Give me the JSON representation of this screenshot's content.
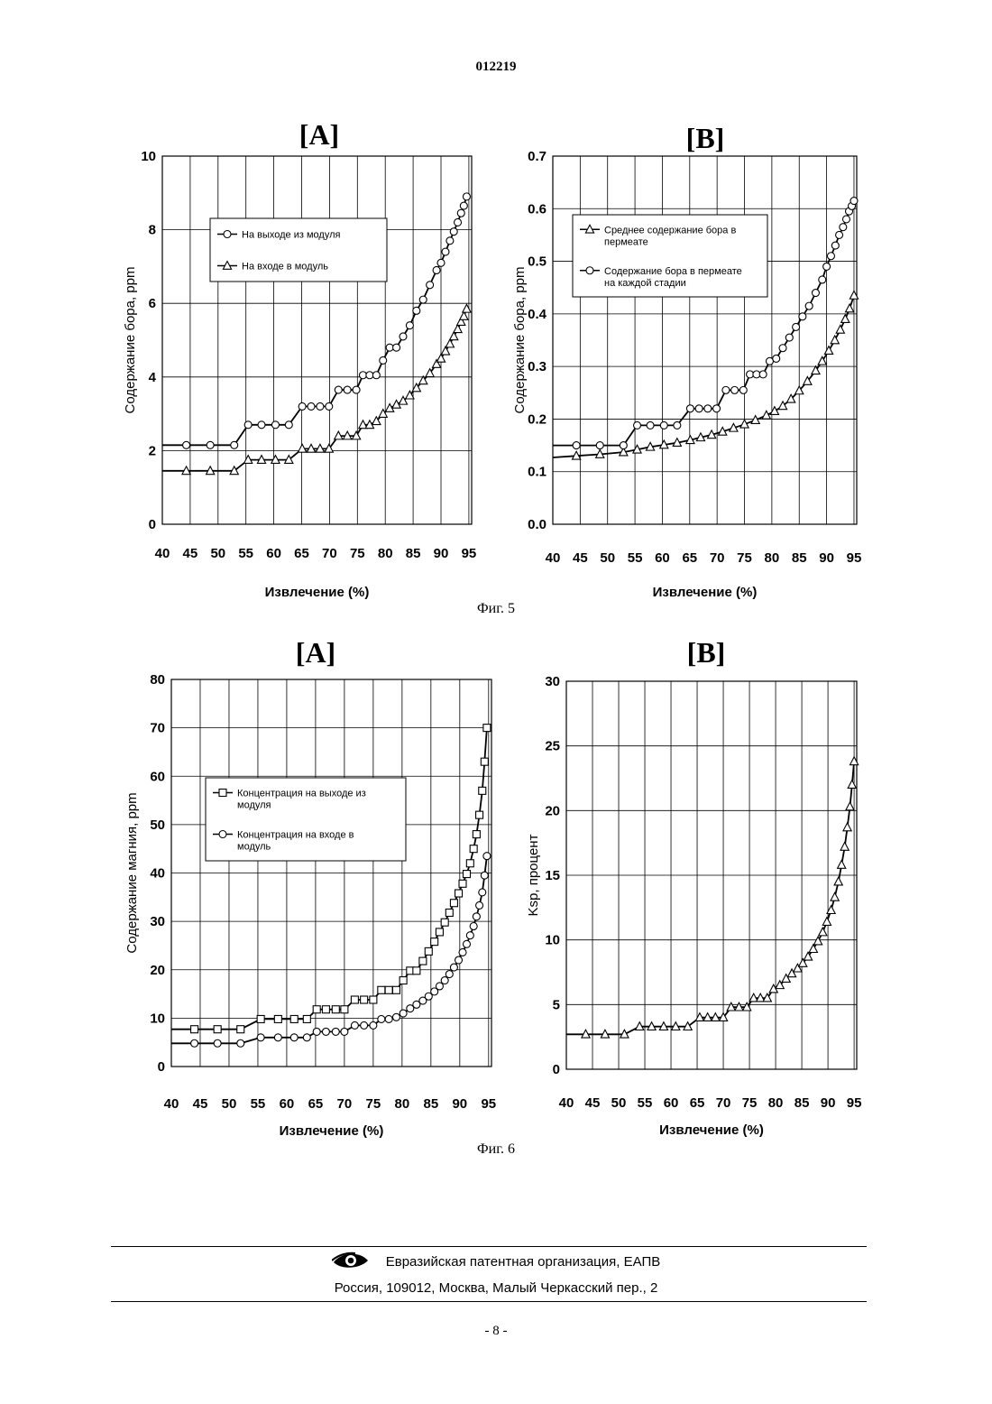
{
  "document": {
    "number": "012219",
    "figure5_caption": "Фиг. 5",
    "figure6_caption": "Фиг. 6",
    "footer_org": "Евразийская патентная организация, ЕАПВ",
    "footer_address": "Россия, 109012, Москва, Малый Черкасский пер., 2",
    "page_number": "- 8 -"
  },
  "charts": [
    {
      "id": "fig5a",
      "panel": "[A]",
      "ylabel": "Содержание бора, ppm",
      "xlabel": "Извлечение (%)",
      "xticks": [
        40,
        45,
        50,
        55,
        60,
        65,
        70,
        75,
        80,
        85,
        90,
        95
      ],
      "yticks": [
        "0",
        "2",
        "4",
        "6",
        "8",
        "10"
      ],
      "ylim": [
        0,
        10
      ],
      "legend": [
        {
          "label": [
            "На выходе из модуля"
          ],
          "marker": "circle"
        },
        {
          "label": [
            "На входе в модуль"
          ],
          "marker": "triangle"
        }
      ]
    },
    {
      "id": "fig5b",
      "panel": "[B]",
      "ylabel": "Содержание бора, ppm",
      "xlabel": "Извлечение (%)",
      "xticks": [
        40,
        45,
        50,
        55,
        60,
        65,
        70,
        75,
        80,
        85,
        90,
        95
      ],
      "yticks": [
        "0.0",
        "0.1",
        "0.2",
        "0.3",
        "0.4",
        "0.5",
        "0.6",
        "0.7"
      ],
      "ylim": [
        0,
        0.7
      ],
      "legend": [
        {
          "label": [
            "Среднее содержание бора в",
            "пермеате"
          ],
          "marker": "triangle"
        },
        {
          "label": [
            "Содержание бора в пермеате",
            "на каждой стадии"
          ],
          "marker": "circle"
        }
      ]
    },
    {
      "id": "fig6a",
      "panel": "[A]",
      "ylabel": "Содержание магния, ppm",
      "xlabel": "Извлечение (%)",
      "xticks": [
        40,
        45,
        50,
        55,
        60,
        65,
        70,
        75,
        80,
        85,
        90,
        95
      ],
      "yticks": [
        "0",
        "10",
        "20",
        "30",
        "40",
        "50",
        "60",
        "70",
        "80"
      ],
      "ylim": [
        0,
        80
      ],
      "legend": [
        {
          "label": [
            "Концентрация на выходе из",
            "модуля"
          ],
          "marker": "square"
        },
        {
          "label": [
            "Концентрация на входе в",
            "модуль"
          ],
          "marker": "circle"
        }
      ]
    },
    {
      "id": "fig6b",
      "panel": "[B]",
      "ylabel": "Ksp, процент",
      "xlabel": "Извлечение (%)",
      "xticks": [
        40,
        45,
        50,
        55,
        60,
        65,
        70,
        75,
        80,
        85,
        90,
        95
      ],
      "yticks": [
        "0",
        "5",
        "10",
        "15",
        "20",
        "25",
        "30"
      ],
      "ylim": [
        0,
        30
      ],
      "legend": []
    }
  ],
  "chart_data": [
    {
      "type": "line",
      "xlim": [
        40,
        95.5
      ],
      "ylim": [
        0,
        10
      ],
      "grid": true,
      "legend_position": "upper-center",
      "series": [
        {
          "name": "На выходе из модуля",
          "marker": "circle",
          "x": [
            40,
            44.3,
            48.6,
            52.9,
            55.4,
            57.8,
            60.3,
            62.7,
            65.1,
            66.7,
            68.3,
            69.9,
            71.6,
            73.2,
            74.8,
            76,
            77.2,
            78.4,
            79.6,
            80.8,
            82,
            83.2,
            84.4,
            85.6,
            86.8,
            88,
            89.2,
            90,
            90.8,
            91.6,
            92.3,
            93,
            93.6,
            94.1,
            94.6
          ],
          "y": [
            2.15,
            2.15,
            2.15,
            2.15,
            2.7,
            2.7,
            2.7,
            2.7,
            3.2,
            3.2,
            3.2,
            3.2,
            3.65,
            3.65,
            3.65,
            4.05,
            4.05,
            4.05,
            4.45,
            4.8,
            4.8,
            5.1,
            5.4,
            5.8,
            6.1,
            6.5,
            6.9,
            7.1,
            7.4,
            7.7,
            7.95,
            8.2,
            8.45,
            8.65,
            8.9
          ]
        },
        {
          "name": "На входе в модуль",
          "marker": "triangle",
          "x": [
            40,
            44.3,
            48.6,
            52.9,
            55.4,
            57.8,
            60.3,
            62.7,
            65.1,
            66.7,
            68.3,
            69.9,
            71.6,
            73.2,
            74.8,
            76,
            77.2,
            78.4,
            79.6,
            80.8,
            82,
            83.2,
            84.4,
            85.6,
            86.8,
            88,
            89.2,
            90,
            90.8,
            91.6,
            92.3,
            93,
            93.6,
            94.1,
            94.6
          ],
          "y": [
            1.45,
            1.45,
            1.45,
            1.45,
            1.75,
            1.75,
            1.75,
            1.75,
            2.05,
            2.05,
            2.05,
            2.05,
            2.4,
            2.4,
            2.4,
            2.7,
            2.7,
            2.8,
            3.0,
            3.15,
            3.25,
            3.35,
            3.5,
            3.7,
            3.9,
            4.1,
            4.35,
            4.5,
            4.7,
            4.9,
            5.1,
            5.3,
            5.5,
            5.65,
            5.85
          ]
        }
      ]
    },
    {
      "type": "line",
      "xlim": [
        40,
        95.5
      ],
      "ylim": [
        0,
        0.7
      ],
      "grid": true,
      "legend_position": "upper-center",
      "series": [
        {
          "name": "Среднее содержание бора в пермеате",
          "marker": "triangle",
          "x": [
            40,
            44.3,
            48.6,
            52.9,
            55.4,
            57.8,
            60.3,
            62.7,
            65.1,
            67,
            69,
            71,
            73,
            75,
            77,
            79,
            80.5,
            82,
            83.5,
            85,
            86.5,
            88,
            89.2,
            90.4,
            91.5,
            92.5,
            93.4,
            94.2,
            95
          ],
          "y": [
            0.127,
            0.13,
            0.133,
            0.137,
            0.142,
            0.147,
            0.151,
            0.155,
            0.16,
            0.165,
            0.17,
            0.176,
            0.183,
            0.19,
            0.198,
            0.207,
            0.215,
            0.225,
            0.238,
            0.254,
            0.272,
            0.292,
            0.31,
            0.33,
            0.35,
            0.37,
            0.39,
            0.41,
            0.435
          ]
        },
        {
          "name": "Содержание бора в пермеате на каждой стадии",
          "marker": "circle",
          "x": [
            40,
            44.3,
            48.6,
            52.9,
            55.4,
            57.8,
            60.3,
            62.7,
            65.1,
            66.7,
            68.3,
            69.9,
            71.6,
            73.2,
            74.8,
            76,
            77.2,
            78.4,
            79.6,
            80.8,
            82,
            83.2,
            84.4,
            85.6,
            86.8,
            88,
            89.2,
            90,
            90.8,
            91.6,
            92.3,
            93,
            93.6,
            94.1,
            94.6,
            95
          ],
          "y": [
            0.15,
            0.15,
            0.15,
            0.15,
            0.188,
            0.188,
            0.188,
            0.188,
            0.22,
            0.22,
            0.22,
            0.22,
            0.255,
            0.255,
            0.255,
            0.285,
            0.285,
            0.285,
            0.31,
            0.315,
            0.335,
            0.355,
            0.375,
            0.395,
            0.415,
            0.44,
            0.465,
            0.49,
            0.51,
            0.53,
            0.55,
            0.565,
            0.58,
            0.595,
            0.605,
            0.615
          ]
        }
      ]
    },
    {
      "type": "line",
      "xlim": [
        40,
        95.5
      ],
      "ylim": [
        0,
        80
      ],
      "grid": true,
      "legend_position": "center-left",
      "series": [
        {
          "name": "Концентрация на выходе из модуля",
          "marker": "square",
          "x": [
            40,
            44,
            48,
            52,
            55.5,
            58.5,
            61.3,
            63.5,
            65.2,
            66.8,
            68.5,
            70,
            71.8,
            73.4,
            75,
            76.4,
            77.7,
            79,
            80.2,
            81.4,
            82.5,
            83.6,
            84.6,
            85.6,
            86.5,
            87.4,
            88.2,
            89,
            89.8,
            90.5,
            91.2,
            91.8,
            92.4,
            92.9,
            93.4,
            93.9,
            94.3,
            94.7
          ],
          "y": [
            7.7,
            7.7,
            7.7,
            7.7,
            9.8,
            9.8,
            9.8,
            9.8,
            11.8,
            11.8,
            11.8,
            11.8,
            13.8,
            13.8,
            13.8,
            15.8,
            15.8,
            15.8,
            17.8,
            19.8,
            19.8,
            21.8,
            23.8,
            25.8,
            27.8,
            29.8,
            31.8,
            33.8,
            35.8,
            37.8,
            39.8,
            42,
            45,
            48,
            52,
            57,
            63,
            70
          ]
        },
        {
          "name": "Концентрация на входе в модуль",
          "marker": "circle",
          "x": [
            40,
            44,
            48,
            52,
            55.5,
            58.5,
            61.3,
            63.5,
            65.2,
            66.8,
            68.5,
            70,
            71.8,
            73.4,
            75,
            76.4,
            77.7,
            79,
            80.2,
            81.4,
            82.5,
            83.6,
            84.6,
            85.6,
            86.5,
            87.4,
            88.2,
            89,
            89.8,
            90.5,
            91.2,
            91.8,
            92.4,
            92.9,
            93.4,
            93.9,
            94.3,
            94.7
          ],
          "y": [
            4.8,
            4.8,
            4.8,
            4.8,
            6,
            6,
            6,
            6,
            7.2,
            7.2,
            7.2,
            7.2,
            8.5,
            8.5,
            8.5,
            9.8,
            9.8,
            10.2,
            11,
            12,
            12.8,
            13.6,
            14.5,
            15.5,
            16.6,
            17.8,
            19.1,
            20.5,
            22,
            23.6,
            25.3,
            27.1,
            29,
            31,
            33.3,
            36,
            39.5,
            43.5
          ]
        }
      ]
    },
    {
      "type": "line",
      "xlim": [
        40,
        95.5
      ],
      "ylim": [
        0,
        30
      ],
      "grid": true,
      "series": [
        {
          "name": "",
          "marker": "triangle",
          "x": [
            40,
            43.7,
            47.4,
            51.1,
            54,
            56.3,
            58.6,
            60.9,
            63.2,
            65.5,
            67,
            68.5,
            70,
            71.5,
            73,
            74.5,
            75.8,
            77.1,
            78.4,
            79.6,
            80.8,
            82,
            83.1,
            84.2,
            85.2,
            86.2,
            87.2,
            88.1,
            89,
            89.8,
            90.6,
            91.3,
            92,
            92.6,
            93.2,
            93.7,
            94.2,
            94.6,
            95
          ],
          "y": [
            2.7,
            2.7,
            2.7,
            2.7,
            3.3,
            3.3,
            3.3,
            3.3,
            3.3,
            4,
            4,
            4,
            4,
            4.8,
            4.8,
            4.8,
            5.5,
            5.5,
            5.5,
            6.2,
            6.5,
            7,
            7.4,
            7.8,
            8.2,
            8.7,
            9.3,
            9.9,
            10.6,
            11.4,
            12.3,
            13.3,
            14.5,
            15.8,
            17.2,
            18.7,
            20.3,
            22,
            23.8
          ]
        }
      ]
    }
  ]
}
